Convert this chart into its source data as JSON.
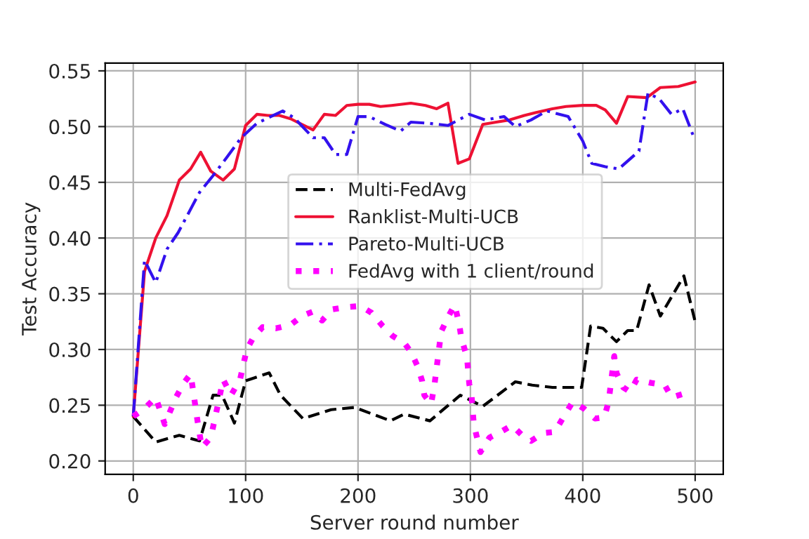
{
  "chart_data": {
    "type": "line",
    "xlabel": "Server round number",
    "ylabel": "Test Accuracy",
    "xlim": [
      -25,
      525
    ],
    "xticks": [
      0,
      100,
      200,
      300,
      400,
      500
    ],
    "ylim": [
      0.188,
      0.557
    ],
    "yticks": [
      {
        "value": 0.2,
        "label": "0.20"
      },
      {
        "value": 0.25,
        "label": "0.25"
      },
      {
        "value": 0.3,
        "label": "0.30"
      },
      {
        "value": 0.35,
        "label": "0.35"
      },
      {
        "value": 0.4,
        "label": "0.40"
      },
      {
        "value": 0.45,
        "label": "0.45"
      },
      {
        "value": 0.5,
        "label": "0.50"
      },
      {
        "value": 0.55,
        "label": "0.55"
      }
    ],
    "grid": true,
    "legend": "center",
    "marker": "none",
    "series": [
      {
        "name": "Multi-FedAvg",
        "color": "#000000",
        "line_style": "dashed",
        "x": [
          0,
          20,
          41,
          59,
          71,
          79,
          90,
          100,
          121,
          131,
          151,
          176,
          197,
          229,
          241,
          264,
          291,
          311,
          340,
          355,
          373,
          399,
          407,
          418,
          430,
          440,
          448,
          459,
          469,
          490,
          500
        ],
        "values": [
          0.24,
          0.217,
          0.223,
          0.218,
          0.259,
          0.259,
          0.234,
          0.272,
          0.279,
          0.259,
          0.238,
          0.246,
          0.248,
          0.236,
          0.242,
          0.236,
          0.259,
          0.249,
          0.271,
          0.268,
          0.266,
          0.266,
          0.321,
          0.319,
          0.307,
          0.317,
          0.317,
          0.358,
          0.33,
          0.366,
          0.325
        ]
      },
      {
        "name": "Ranklist-Multi-UCB",
        "color": "#ee1133",
        "line_style": "solid",
        "x": [
          0,
          10,
          20,
          30,
          41,
          51,
          60,
          69,
          80,
          90,
          100,
          110,
          120,
          130,
          140,
          160,
          170,
          180,
          190,
          200,
          210,
          220,
          230,
          247,
          260,
          270,
          280,
          289,
          299,
          311,
          323,
          335,
          348,
          360,
          373,
          385,
          400,
          412,
          420,
          430,
          440,
          457,
          469,
          485,
          500
        ],
        "values": [
          0.24,
          0.37,
          0.4,
          0.42,
          0.452,
          0.462,
          0.477,
          0.46,
          0.452,
          0.462,
          0.501,
          0.511,
          0.51,
          0.51,
          0.507,
          0.497,
          0.511,
          0.51,
          0.519,
          0.52,
          0.52,
          0.518,
          0.519,
          0.521,
          0.519,
          0.516,
          0.521,
          0.467,
          0.471,
          0.502,
          0.504,
          0.506,
          0.51,
          0.513,
          0.516,
          0.518,
          0.519,
          0.519,
          0.515,
          0.503,
          0.527,
          0.526,
          0.535,
          0.536,
          0.54
        ]
      },
      {
        "name": "Pareto-Multi-UCB",
        "color": "#3311ee",
        "line_style": "dashdot",
        "x": [
          0,
          10,
          20,
          30,
          40,
          59,
          71,
          83,
          96,
          110,
          133,
          143,
          160,
          170,
          180,
          190,
          200,
          210,
          224,
          238,
          247,
          263,
          280,
          299,
          313,
          330,
          340,
          354,
          368,
          387,
          400,
          408,
          420,
          432,
          450,
          458,
          468,
          479,
          489,
          499
        ],
        "values": [
          0.24,
          0.38,
          0.36,
          0.39,
          0.405,
          0.441,
          0.456,
          0.472,
          0.49,
          0.503,
          0.514,
          0.508,
          0.49,
          0.49,
          0.475,
          0.475,
          0.509,
          0.509,
          0.502,
          0.496,
          0.504,
          0.503,
          0.501,
          0.511,
          0.506,
          0.509,
          0.5,
          0.506,
          0.514,
          0.509,
          0.487,
          0.467,
          0.464,
          0.462,
          0.478,
          0.53,
          0.525,
          0.511,
          0.516,
          0.49
        ]
      },
      {
        "name": "FedAvg with 1 client/round",
        "color": "#ff00ff",
        "line_style": "dotted",
        "x": [
          0,
          10,
          20,
          28,
          38,
          45,
          51,
          53,
          57,
          61,
          69,
          75,
          80,
          87,
          95,
          101,
          107,
          115,
          127,
          140,
          150,
          160,
          168,
          177,
          189,
          202,
          212,
          222,
          231,
          241,
          247,
          253,
          257,
          259,
          265,
          268,
          274,
          280,
          286,
          290,
          292,
          297,
          299,
          301,
          303,
          309,
          317,
          327,
          337,
          346,
          354,
          365,
          375,
          385,
          391,
          401,
          411,
          419,
          423,
          428,
          430,
          436,
          442,
          448,
          461,
          473,
          479,
          492
        ],
        "values": [
          0.24,
          0.247,
          0.257,
          0.233,
          0.257,
          0.27,
          0.278,
          0.265,
          0.237,
          0.212,
          0.221,
          0.249,
          0.273,
          0.259,
          0.273,
          0.3,
          0.311,
          0.32,
          0.319,
          0.322,
          0.33,
          0.334,
          0.326,
          0.336,
          0.338,
          0.339,
          0.333,
          0.321,
          0.312,
          0.306,
          0.298,
          0.285,
          0.272,
          0.259,
          0.251,
          0.268,
          0.316,
          0.329,
          0.34,
          0.323,
          0.31,
          0.293,
          0.269,
          0.259,
          0.233,
          0.208,
          0.221,
          0.226,
          0.232,
          0.223,
          0.218,
          0.225,
          0.226,
          0.243,
          0.253,
          0.247,
          0.238,
          0.239,
          0.253,
          0.294,
          0.279,
          0.266,
          0.262,
          0.273,
          0.27,
          0.268,
          0.257,
          0.261
        ]
      }
    ]
  }
}
